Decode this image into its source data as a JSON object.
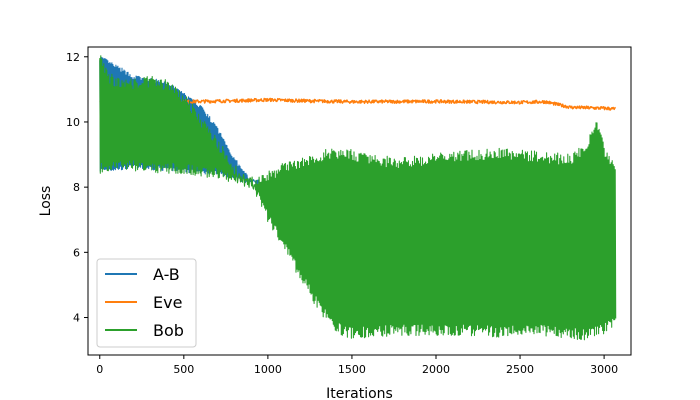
{
  "chart_data": {
    "type": "line",
    "title": "",
    "xlabel": "Iterations",
    "ylabel": "Loss",
    "xlim": [
      -70,
      3160
    ],
    "ylim": [
      2.85,
      12.3
    ],
    "x_ticks": [
      0,
      500,
      1000,
      1500,
      2000,
      2500,
      3000
    ],
    "y_ticks": [
      4,
      6,
      8,
      10,
      12
    ],
    "legend_position": "lower-left",
    "grid": false,
    "series": [
      {
        "name": "A-B",
        "color": "#1f77b4",
        "kind": "band",
        "x": [
          0,
          200,
          400,
          600,
          700,
          800,
          850,
          900,
          950
        ],
        "upper": [
          12.0,
          11.4,
          11.2,
          10.5,
          9.8,
          8.9,
          8.5,
          8.25,
          8.2
        ],
        "lower": [
          8.5,
          8.6,
          8.55,
          8.45,
          8.4,
          8.3,
          8.2,
          8.15,
          8.1
        ]
      },
      {
        "name": "Eve",
        "color": "#ff7f0e",
        "kind": "line",
        "x": [
          0,
          50,
          100,
          200,
          300,
          400,
          500,
          600,
          800,
          1000,
          1200,
          1500,
          2000,
          2500,
          2650,
          2800,
          3000,
          3070
        ],
        "y": [
          10.6,
          10.5,
          10.55,
          10.6,
          10.62,
          10.6,
          10.62,
          10.63,
          10.65,
          10.68,
          10.65,
          10.62,
          10.63,
          10.6,
          10.62,
          10.45,
          10.42,
          10.4
        ],
        "noise": 0.05
      },
      {
        "name": "Bob",
        "color": "#2ca02c",
        "kind": "band",
        "x": [
          0,
          50,
          100,
          200,
          300,
          400,
          500,
          600,
          700,
          800,
          850,
          900,
          950,
          1000,
          1100,
          1200,
          1300,
          1400,
          1500,
          1600,
          1800,
          2000,
          2200,
          2400,
          2600,
          2800,
          2900,
          2950,
          3000,
          3050,
          3070
        ],
        "upper": [
          12.0,
          11.4,
          11.3,
          11.25,
          11.3,
          11.2,
          10.8,
          10.1,
          9.4,
          8.6,
          8.35,
          8.2,
          8.25,
          8.4,
          8.65,
          8.85,
          9.0,
          9.1,
          9.05,
          8.9,
          8.8,
          8.95,
          9.05,
          9.1,
          9.0,
          8.9,
          9.3,
          10.1,
          9.2,
          8.8,
          8.5
        ],
        "lower": [
          8.5,
          8.6,
          8.58,
          8.6,
          8.55,
          8.52,
          8.5,
          8.42,
          8.35,
          8.25,
          8.15,
          8.05,
          7.6,
          7.0,
          6.1,
          5.2,
          4.3,
          3.65,
          3.45,
          3.5,
          3.55,
          3.55,
          3.55,
          3.5,
          3.55,
          3.45,
          3.4,
          3.5,
          3.6,
          3.8,
          4.0
        ],
        "noise": 0.12
      }
    ]
  }
}
